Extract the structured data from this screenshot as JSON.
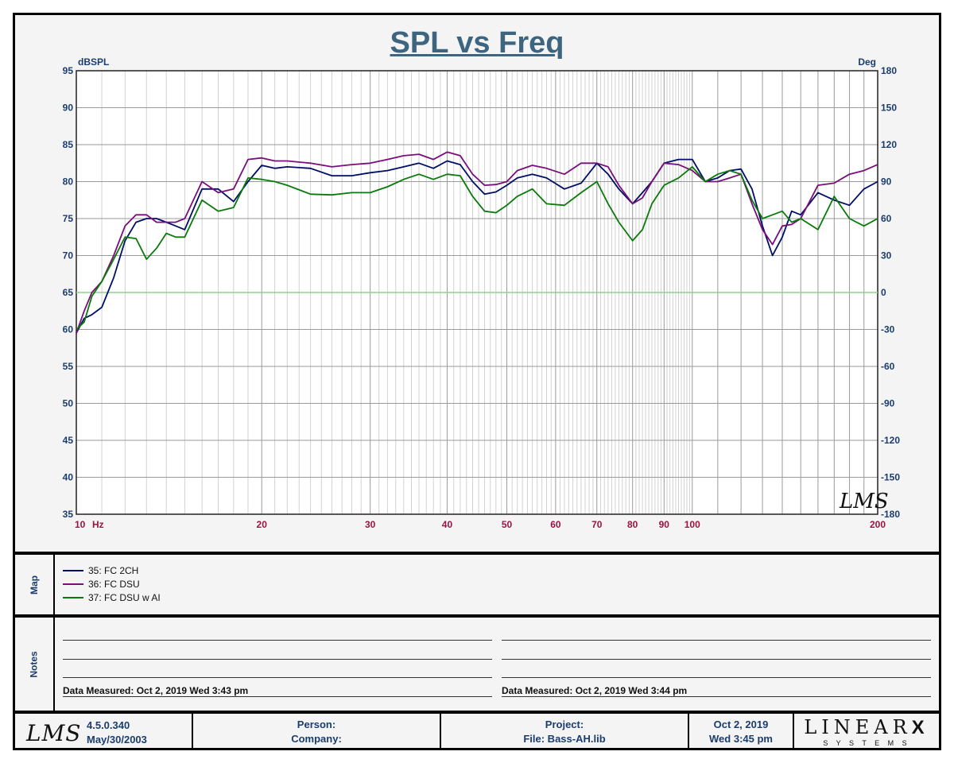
{
  "chart_data": {
    "type": "line",
    "title": "SPL vs Freq",
    "xlabel": "Hz",
    "ylabel": "dBSPL",
    "y2label": "Deg",
    "xscale": "log",
    "xlim": [
      10,
      200
    ],
    "ylim": [
      35,
      95
    ],
    "y2lim": [
      -180,
      180
    ],
    "xticks": [
      10,
      20,
      30,
      40,
      50,
      60,
      70,
      80,
      90,
      100,
      200
    ],
    "xtick_labels": [
      "10",
      "20",
      "30",
      "40",
      "50",
      "60",
      "70",
      "80",
      "90",
      "100",
      "200"
    ],
    "yticks": [
      95,
      90,
      85,
      80,
      75,
      70,
      65,
      60,
      55,
      50,
      45,
      40,
      35
    ],
    "y2ticks": [
      180,
      150,
      120,
      90,
      60,
      30,
      0,
      -30,
      -60,
      -90,
      -120,
      -150,
      -180
    ],
    "grid": true,
    "reference_line_dB": 65,
    "series": [
      {
        "name": "35: FC 2CH",
        "color": "#000f66",
        "x": [
          10,
          10.3,
          10.6,
          11,
          11.5,
          12,
          12.5,
          13,
          13.5,
          14,
          14.5,
          15,
          16,
          17,
          18,
          19,
          20,
          21,
          22,
          24,
          26,
          28,
          30,
          32,
          34,
          36,
          38,
          40,
          42,
          44,
          46,
          48,
          50,
          52,
          55,
          58,
          62,
          66,
          70,
          73,
          76,
          80,
          83,
          86,
          90,
          95,
          100,
          105,
          110,
          115,
          120,
          125,
          130,
          135,
          140,
          145,
          150,
          160,
          170,
          180,
          190,
          200
        ],
        "y": [
          59.5,
          61.5,
          62,
          63,
          67,
          72,
          74.5,
          75,
          75,
          74.5,
          74,
          73.5,
          79,
          79,
          77.3,
          80,
          82.2,
          81.8,
          82,
          81.8,
          80.8,
          80.8,
          81.2,
          81.5,
          82,
          82.5,
          81.8,
          82.8,
          82.3,
          80,
          78.3,
          78.6,
          79.5,
          80.5,
          81,
          80.5,
          79,
          79.8,
          82.5,
          81,
          79,
          77,
          78.5,
          80,
          82.5,
          83,
          83,
          80,
          80.5,
          81.5,
          81.7,
          79,
          74,
          70,
          72.5,
          76,
          75.5,
          78.5,
          77.5,
          76.8,
          79,
          80
        ]
      },
      {
        "name": "36: FC DSU",
        "color": "#7a0e7a",
        "x": [
          10,
          10.3,
          10.6,
          11,
          11.5,
          12,
          12.5,
          13,
          13.5,
          14,
          14.5,
          15,
          16,
          17,
          18,
          19,
          20,
          21,
          22,
          24,
          26,
          28,
          30,
          32,
          34,
          36,
          38,
          40,
          42,
          44,
          46,
          48,
          50,
          52,
          55,
          58,
          62,
          66,
          70,
          73,
          76,
          80,
          83,
          86,
          90,
          95,
          100,
          105,
          110,
          115,
          120,
          125,
          130,
          135,
          140,
          145,
          150,
          160,
          170,
          180,
          190,
          200
        ],
        "y": [
          59.5,
          62.5,
          65,
          66.5,
          70,
          74,
          75.5,
          75.5,
          74.5,
          74.5,
          74.5,
          75,
          80,
          78.5,
          79,
          83,
          83.2,
          82.8,
          82.8,
          82.5,
          82,
          82.3,
          82.5,
          83,
          83.5,
          83.7,
          83,
          84,
          83.5,
          81,
          79.5,
          79.6,
          80,
          81.5,
          82.2,
          81.8,
          81,
          82.5,
          82.5,
          82,
          79.5,
          77,
          77.8,
          80,
          82.5,
          82.3,
          81.5,
          80,
          80,
          80.5,
          81,
          77,
          73.5,
          71.5,
          74,
          74.2,
          75,
          79.5,
          79.8,
          81,
          81.5,
          82.3
        ]
      },
      {
        "name": "37: FC DSU w AI",
        "color": "#0a7a0a",
        "x": [
          10,
          10.3,
          10.6,
          11,
          11.5,
          12,
          12.5,
          13,
          13.5,
          14,
          14.5,
          15,
          16,
          17,
          18,
          19,
          20,
          21,
          22,
          24,
          26,
          28,
          30,
          32,
          34,
          36,
          38,
          40,
          42,
          44,
          46,
          48,
          50,
          52,
          55,
          58,
          62,
          66,
          70,
          73,
          76,
          80,
          83,
          86,
          90,
          95,
          100,
          105,
          110,
          115,
          120,
          125,
          130,
          135,
          140,
          145,
          150,
          160,
          170,
          180,
          190,
          200
        ],
        "y": [
          60,
          61,
          64.5,
          66.5,
          69.5,
          72.5,
          72.3,
          69.5,
          71,
          73,
          72.5,
          72.5,
          77.5,
          76,
          76.5,
          80.5,
          80.3,
          80,
          79.5,
          78.3,
          78.2,
          78.5,
          78.5,
          79.3,
          80.3,
          81,
          80.3,
          81,
          80.8,
          78,
          76,
          75.8,
          76.8,
          78,
          79,
          77,
          76.8,
          78.5,
          80,
          77,
          74.5,
          72,
          73.5,
          77,
          79.5,
          80.5,
          82,
          80,
          81,
          81.5,
          81,
          77.5,
          75,
          75.5,
          76,
          74.5,
          75,
          73.5,
          78,
          75,
          74,
          75
        ]
      }
    ]
  },
  "header": {
    "brand_mark": "LMS"
  },
  "map": {
    "label": "Map"
  },
  "notes": {
    "label": "Notes",
    "left_measured": "Data Measured: Oct  2, 2019  Wed  3:43 pm",
    "right_measured": "Data Measured: Oct  2, 2019  Wed  3:44 pm"
  },
  "footer": {
    "logo": "LMS",
    "version": "4.5.0.340",
    "version_date": "May/30/2003",
    "person_label": "Person:",
    "company_label": "Company:",
    "project_label": "Project:",
    "file_label": "File: Bass-AH.lib",
    "date": "Oct  2, 2019",
    "day_time": "Wed  3:45 pm",
    "linearx": "LINEAR",
    "linearx_x": "X",
    "systems": "S Y S T E M S"
  }
}
